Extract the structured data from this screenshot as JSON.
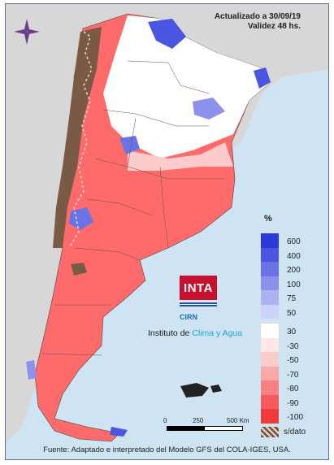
{
  "header": {
    "update_line": "Actualizado a 30/09/19",
    "validity_line": "Validez 48 hs."
  },
  "legend": {
    "unit": "%",
    "positive_classes": [
      {
        "label": "600",
        "color": "#2b38d8"
      },
      {
        "label": "400",
        "color": "#4a55e0"
      },
      {
        "label": "200",
        "color": "#6a73e6"
      },
      {
        "label": "100",
        "color": "#8c92ec"
      },
      {
        "label": "75",
        "color": "#aeb2f0"
      },
      {
        "label": "50",
        "color": "#cfd1f6"
      }
    ],
    "negative_classes": [
      {
        "label": "30",
        "color": "#ffffff"
      },
      {
        "label": "-30",
        "color": "#fde6e6"
      },
      {
        "label": "-50",
        "color": "#fccccc"
      },
      {
        "label": "-70",
        "color": "#faa8a8"
      },
      {
        "label": "-80",
        "color": "#f88080"
      },
      {
        "label": "-90",
        "color": "#f65a5a"
      },
      {
        "label": "-100",
        "color": "#f23a3a"
      }
    ],
    "nodata_label": "s/dato"
  },
  "logo": {
    "inta": "INTA",
    "cirn": "CIRN",
    "institute_prefix": "Instituto de ",
    "institute_accent": "Clima y Agua"
  },
  "scale": {
    "labels": [
      "0",
      "250",
      "500 Km"
    ]
  },
  "source": "Fuente: Adaptado e interpretado del Modelo GFS del COLA-IGES, USA.",
  "icons": {
    "compass": "compass-rose-icon"
  }
}
